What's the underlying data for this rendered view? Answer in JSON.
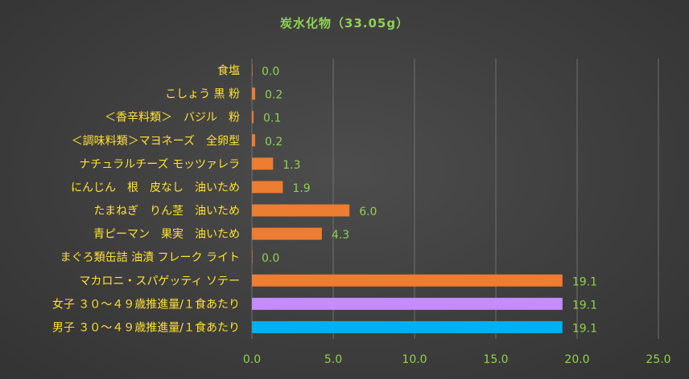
{
  "chart_data": {
    "type": "bar",
    "orientation": "horizontal",
    "title": "炭水化物（33.05g）",
    "categories": [
      "食塩",
      "こしょう 黒 粉",
      "＜香辛料類＞　バジル　粉",
      "＜調味料類＞マヨネーズ　全卵型",
      "ナチュラルチーズ モッツァレラ",
      "にんじん　根　皮なし　油いため",
      "たまねぎ　りん茎　油いため",
      "青ピーマン　果実　油いため",
      "まぐろ類缶詰 油漬 フレーク ライト",
      "マカロニ・スパゲッティ ソテー",
      "女子 ３０～４９歳推進量/１食あたり",
      "男子 ３０～４９歳推進量/１食あたり"
    ],
    "values": [
      0.0,
      0.2,
      0.1,
      0.2,
      1.3,
      1.9,
      6.0,
      4.3,
      0.0,
      19.1,
      19.1,
      19.1
    ],
    "value_labels": [
      "0.0",
      "0.2",
      "0.1",
      "0.2",
      "1.3",
      "1.9",
      "6.0",
      "4.3",
      "0.0",
      "19.1",
      "19.1",
      "19.1"
    ],
    "bar_colors": [
      "#ed7d31",
      "#ed7d31",
      "#ed7d31",
      "#ed7d31",
      "#ed7d31",
      "#ed7d31",
      "#ed7d31",
      "#ed7d31",
      "#ed7d31",
      "#ed7d31",
      "#c48cff",
      "#00b0f0"
    ],
    "xlim": [
      0,
      25
    ],
    "x_ticks": [
      "0.0",
      "5.0",
      "10.0",
      "15.0",
      "20.0",
      "25.0"
    ],
    "grid": true,
    "legend": "none"
  },
  "colors": {
    "title": "#8fd14f",
    "category_labels": "#ffe033",
    "value_labels": "#8fd14f",
    "gridlines": "#6f6f6f"
  }
}
